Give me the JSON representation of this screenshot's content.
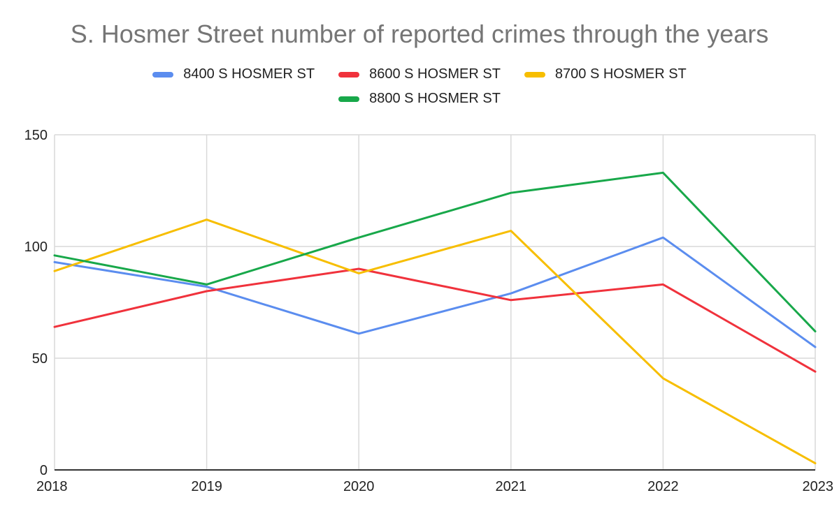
{
  "chart_data": {
    "type": "line",
    "title": "S. Hosmer Street number of reported crimes through the years",
    "xlabel": "",
    "ylabel": "",
    "x": [
      "2018",
      "2019",
      "2020",
      "2021",
      "2022",
      "2023"
    ],
    "y_ticks": [
      "0",
      "50",
      "100",
      "150"
    ],
    "ylim": [
      0,
      150
    ],
    "grid": true,
    "legend_position": "top",
    "series": [
      {
        "name": "8400 S HOSMER ST",
        "color": "#5B8DEF",
        "values": [
          93,
          82,
          61,
          79,
          104,
          55
        ]
      },
      {
        "name": "8600 S HOSMER ST",
        "color": "#F0323C",
        "values": [
          64,
          80,
          90,
          76,
          83,
          44
        ]
      },
      {
        "name": "8700 S HOSMER ST",
        "color": "#F7BE00",
        "values": [
          89,
          112,
          88,
          107,
          41,
          3
        ]
      },
      {
        "name": "8800 S HOSMER ST",
        "color": "#18A84A",
        "values": [
          96,
          83,
          104,
          124,
          133,
          62
        ]
      }
    ]
  }
}
